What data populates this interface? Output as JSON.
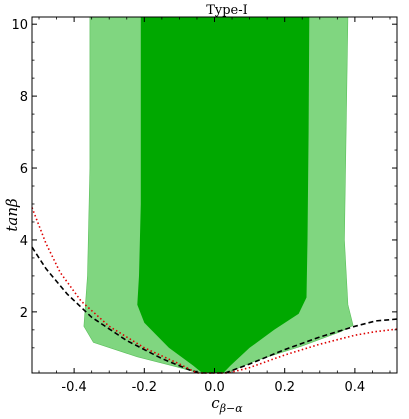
{
  "chart_data": {
    "type": "area",
    "title": "Type-I",
    "xlabel": "c_{β-α}",
    "ylabel": "tanβ",
    "xlim": [
      -0.52,
      0.52
    ],
    "ylim": [
      0.3,
      10.2
    ],
    "x_ticks": [
      -0.4,
      -0.2,
      0.0,
      0.2,
      0.4
    ],
    "x_tick_labels": [
      "-0.4",
      "-0.2",
      "0.0",
      "0.2",
      "0.4"
    ],
    "y_ticks": [
      2,
      4,
      6,
      8,
      10
    ],
    "y_tick_labels": [
      "2",
      "4",
      "6",
      "8",
      "10"
    ],
    "grid": false,
    "colors": {
      "outer_region": "#80d680",
      "inner_region": "#00a800",
      "black_curve": "#000000",
      "red_curve": "#dd0000"
    },
    "regions": [
      {
        "id": "outer",
        "left": [
          [
            -0.355,
            10.2
          ],
          [
            -0.355,
            6
          ],
          [
            -0.362,
            3
          ],
          [
            -0.372,
            1.6
          ],
          [
            -0.345,
            1.15
          ],
          [
            -0.22,
            0.75
          ],
          [
            -0.1,
            0.45
          ],
          [
            -0.045,
            0.3
          ]
        ],
        "right": [
          [
            0.035,
            0.3
          ],
          [
            0.12,
            0.65
          ],
          [
            0.25,
            1.05
          ],
          [
            0.36,
            1.45
          ],
          [
            0.395,
            1.62
          ],
          [
            0.38,
            2.2
          ],
          [
            0.37,
            4
          ],
          [
            0.375,
            7
          ],
          [
            0.38,
            10.2
          ]
        ]
      },
      {
        "id": "inner",
        "left": [
          [
            -0.21,
            10.2
          ],
          [
            -0.21,
            5
          ],
          [
            -0.215,
            3
          ],
          [
            -0.22,
            2.2
          ],
          [
            -0.2,
            1.7
          ],
          [
            -0.13,
            1.0
          ],
          [
            -0.06,
            0.5
          ],
          [
            -0.035,
            0.3
          ]
        ],
        "right": [
          [
            0.025,
            0.3
          ],
          [
            0.045,
            0.5
          ],
          [
            0.1,
            1.0
          ],
          [
            0.17,
            1.5
          ],
          [
            0.24,
            1.95
          ],
          [
            0.262,
            2.4
          ],
          [
            0.265,
            4
          ],
          [
            0.268,
            7
          ],
          [
            0.27,
            10.2
          ]
        ]
      }
    ],
    "curves": [
      {
        "id": "black-dashed",
        "style": "dashed",
        "points": [
          [
            -0.52,
            3.8
          ],
          [
            -0.48,
            3.2
          ],
          [
            -0.42,
            2.5
          ],
          [
            -0.35,
            1.85
          ],
          [
            -0.25,
            1.2
          ],
          [
            -0.15,
            0.7
          ],
          [
            -0.07,
            0.38
          ],
          [
            -0.04,
            0.3
          ],
          [
            0.03,
            0.3
          ],
          [
            0.1,
            0.55
          ],
          [
            0.2,
            0.95
          ],
          [
            0.3,
            1.3
          ],
          [
            0.4,
            1.6
          ],
          [
            0.46,
            1.75
          ],
          [
            0.52,
            1.8
          ]
        ]
      },
      {
        "id": "red-dotted",
        "style": "dotted",
        "points": [
          [
            -0.52,
            4.9
          ],
          [
            -0.48,
            3.9
          ],
          [
            -0.44,
            3.1
          ],
          [
            -0.38,
            2.3
          ],
          [
            -0.3,
            1.6
          ],
          [
            -0.2,
            1.0
          ],
          [
            -0.1,
            0.55
          ],
          [
            -0.05,
            0.3
          ],
          [
            0.04,
            0.3
          ],
          [
            0.1,
            0.45
          ],
          [
            0.2,
            0.8
          ],
          [
            0.3,
            1.1
          ],
          [
            0.4,
            1.35
          ],
          [
            0.46,
            1.45
          ],
          [
            0.52,
            1.52
          ]
        ]
      }
    ]
  }
}
